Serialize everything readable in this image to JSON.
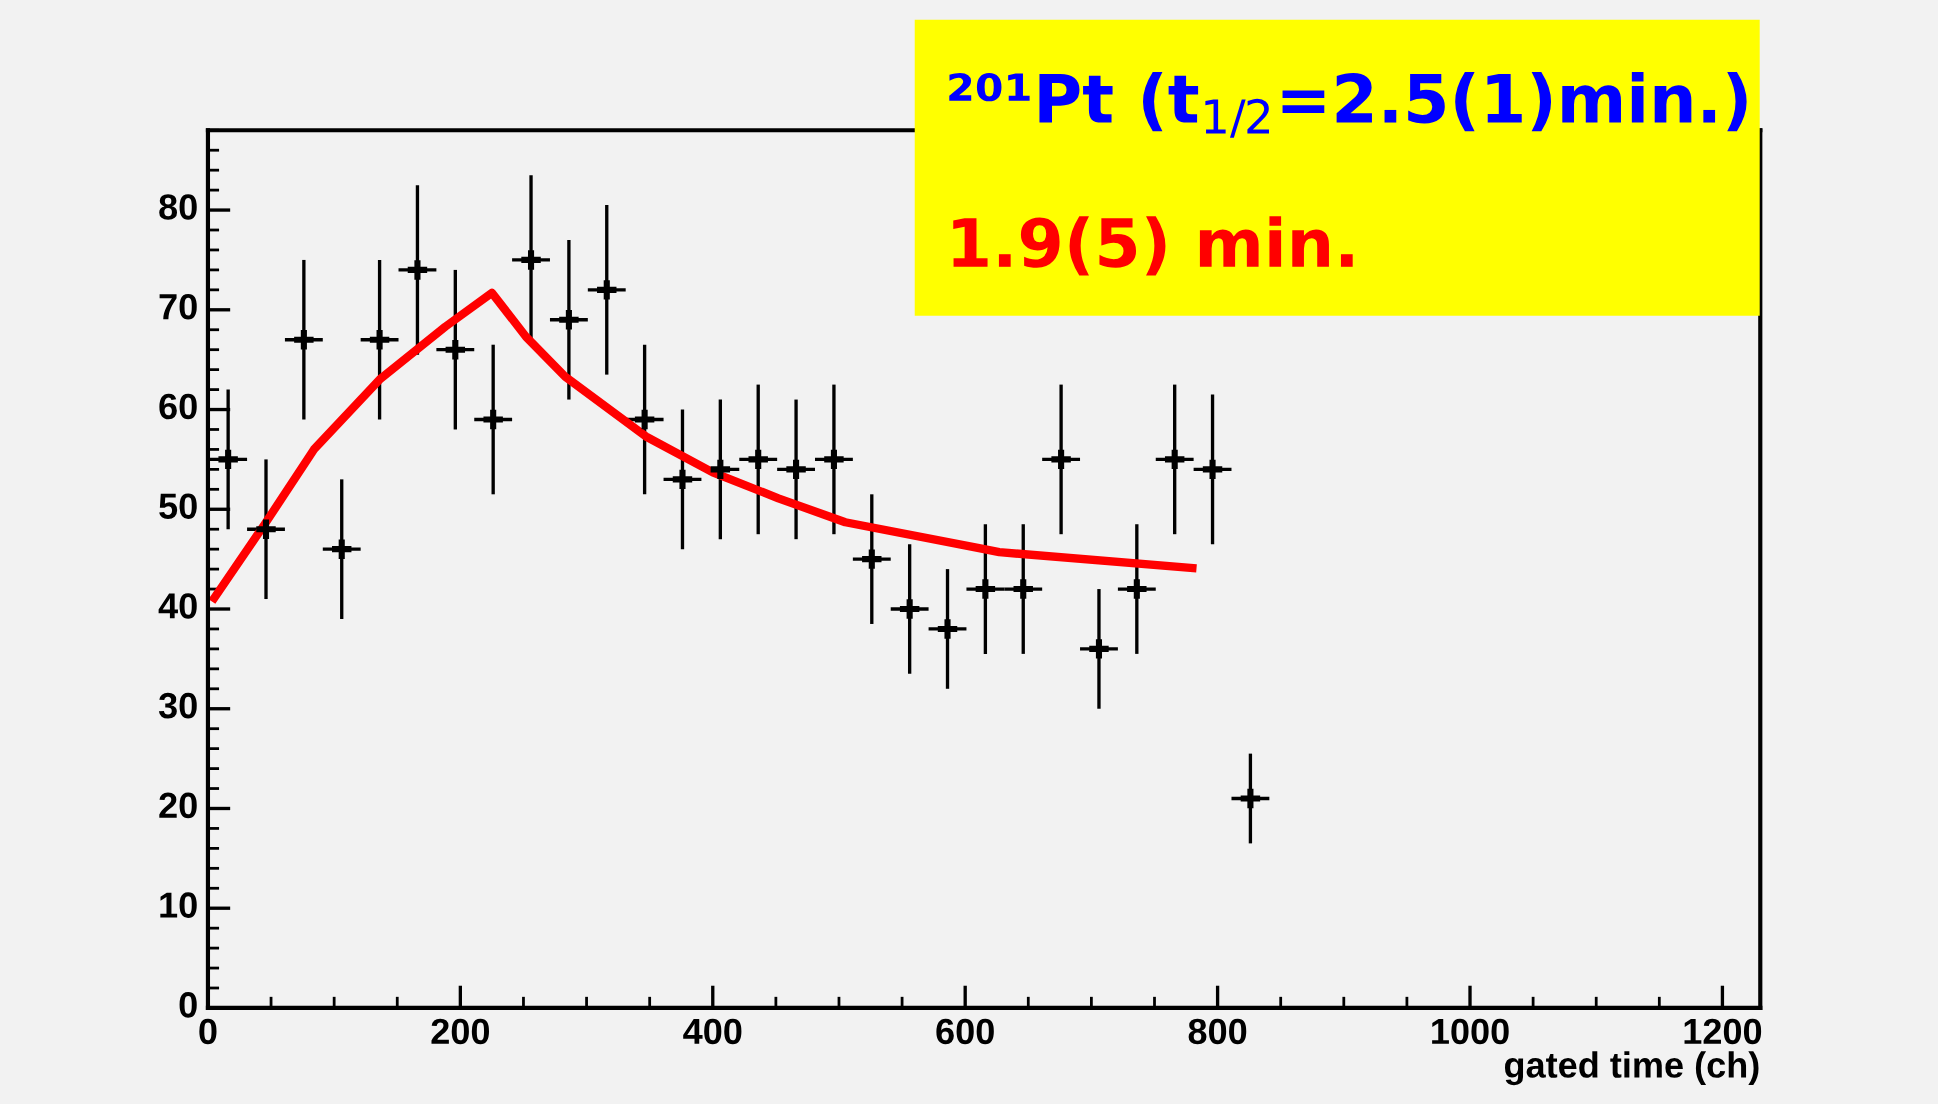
{
  "chart_data": {
    "type": "scatter",
    "xlabel": "gated time (ch)",
    "annotations": [
      "²⁰¹Pt (t$_{1/2}$=2.5(1)min.)",
      "1.9(5) min."
    ],
    "xlim": [
      0,
      1230
    ],
    "ylim": [
      0,
      88
    ],
    "xticks": [
      0,
      200,
      400,
      600,
      800,
      1000,
      1200
    ],
    "yticks": [
      0,
      10,
      20,
      30,
      40,
      50,
      60,
      70,
      80
    ],
    "grid": false,
    "legend": false,
    "series": [
      {
        "color": "#000000",
        "marker": "cross",
        "x": [
          16,
          46,
          76,
          106,
          136,
          166,
          196,
          226,
          256,
          286,
          316,
          346,
          376,
          406,
          436,
          466,
          496,
          526,
          556,
          586,
          616,
          646,
          676,
          706,
          736,
          766,
          796,
          826
        ],
        "values": [
          55,
          48,
          67,
          46,
          67,
          74,
          66,
          59,
          75,
          69,
          72,
          59,
          53,
          54,
          55,
          54,
          55,
          45,
          40,
          38,
          42,
          42,
          55,
          36,
          42,
          55,
          54,
          21
        ],
        "errors": [
          7,
          7,
          8,
          7,
          8,
          8.5,
          8,
          7.5,
          8.5,
          8,
          8.5,
          7.5,
          7,
          7,
          7.5,
          7,
          7.5,
          6.5,
          6.5,
          6,
          6.5,
          6.5,
          7.5,
          6,
          6.5,
          7.5,
          7.5,
          4.5
        ],
        "xerrors": [
          15,
          15,
          15,
          15,
          15,
          15,
          15,
          15,
          15,
          15,
          15,
          15,
          15,
          15,
          15,
          15,
          15,
          15,
          15,
          15,
          15,
          15,
          15,
          15,
          15,
          15,
          15,
          15
        ]
      },
      {
        "type": "line",
        "color": "#ff0000",
        "marker": "none",
        "line_style": "solid",
        "x": [
          5,
          46,
          84,
          136,
          188,
          225,
          252,
          283,
          347,
          400,
          452,
          505,
          611,
          627,
          780
        ],
        "values": [
          41.1,
          48.7,
          56,
          63,
          68.3,
          71.7,
          67.3,
          63.3,
          57.3,
          53.7,
          51.1,
          48.7,
          46.1,
          45.7,
          44.1
        ]
      }
    ]
  }
}
